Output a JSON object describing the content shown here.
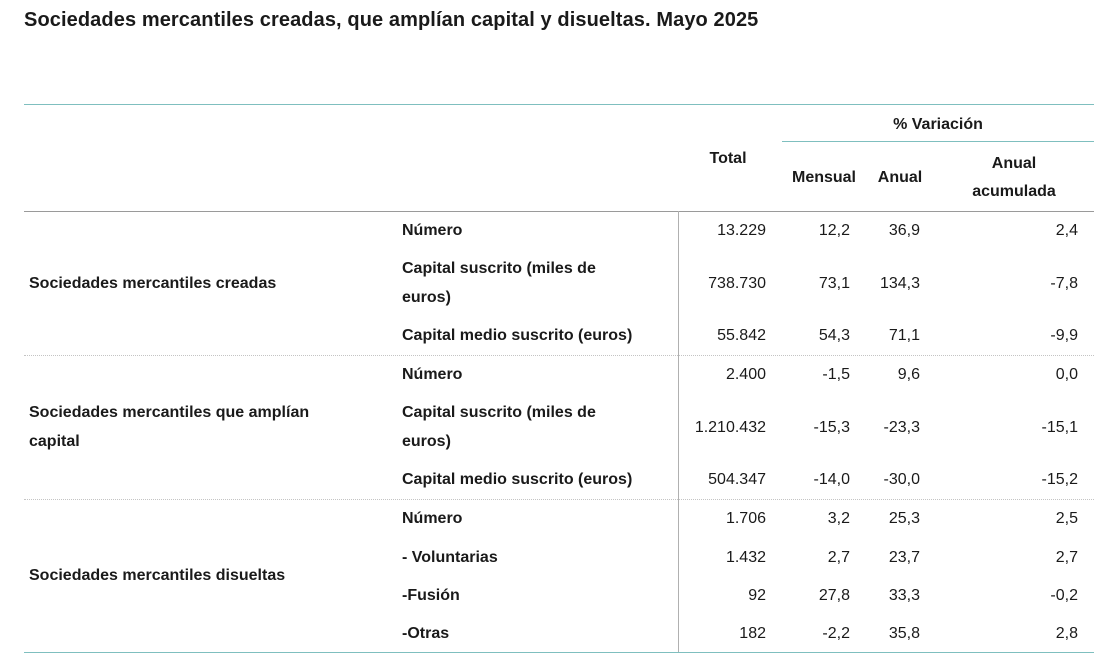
{
  "title": "Sociedades mercantiles creadas, que amplían capital y disueltas. Mayo 2025",
  "header": {
    "variacion": "% Variación",
    "total": "Total",
    "mensual": "Mensual",
    "anual": "Anual",
    "anual_acumulada_1": "Anual",
    "anual_acumulada_2": "acumulada"
  },
  "groups": [
    {
      "label_1": "Sociedades mercantiles creadas",
      "label_2": "",
      "rows": [
        {
          "label_1": "Número",
          "label_2": "",
          "total": "13.229",
          "mensual": "12,2",
          "anual": "36,9",
          "acumulada": "2,4"
        },
        {
          "label_1": "Capital suscrito (miles de",
          "label_2": "euros)",
          "total": "738.730",
          "mensual": "73,1",
          "anual": "134,3",
          "acumulada": "-7,8"
        },
        {
          "label_1": "Capital medio suscrito (euros)",
          "label_2": "",
          "total": "55.842",
          "mensual": "54,3",
          "anual": "71,1",
          "acumulada": "-9,9"
        }
      ]
    },
    {
      "label_1": "Sociedades mercantiles que amplían",
      "label_2": "capital",
      "rows": [
        {
          "label_1": "Número",
          "label_2": "",
          "total": "2.400",
          "mensual": "-1,5",
          "anual": "9,6",
          "acumulada": "0,0"
        },
        {
          "label_1": "Capital suscrito (miles de",
          "label_2": "euros)",
          "total": "1.210.432",
          "mensual": "-15,3",
          "anual": "-23,3",
          "acumulada": "-15,1"
        },
        {
          "label_1": "Capital medio suscrito (euros)",
          "label_2": "",
          "total": "504.347",
          "mensual": "-14,0",
          "anual": "-30,0",
          "acumulada": "-15,2"
        }
      ]
    },
    {
      "label_1": "Sociedades mercantiles disueltas",
      "label_2": "",
      "rows": [
        {
          "label_1": "Número",
          "label_2": "",
          "total": "1.706",
          "mensual": "3,2",
          "anual": "25,3",
          "acumulada": "2,5"
        },
        {
          "label_1": "- Voluntarias",
          "label_2": "",
          "total": "1.432",
          "mensual": "2,7",
          "anual": "23,7",
          "acumulada": "2,7"
        },
        {
          "label_1": "-Fusión",
          "label_2": "",
          "total": "92",
          "mensual": "27,8",
          "anual": "33,3",
          "acumulada": "-0,2"
        },
        {
          "label_1": "-Otras",
          "label_2": "",
          "total": "182",
          "mensual": "-2,2",
          "anual": "35,8",
          "acumulada": "2,8"
        }
      ]
    }
  ]
}
